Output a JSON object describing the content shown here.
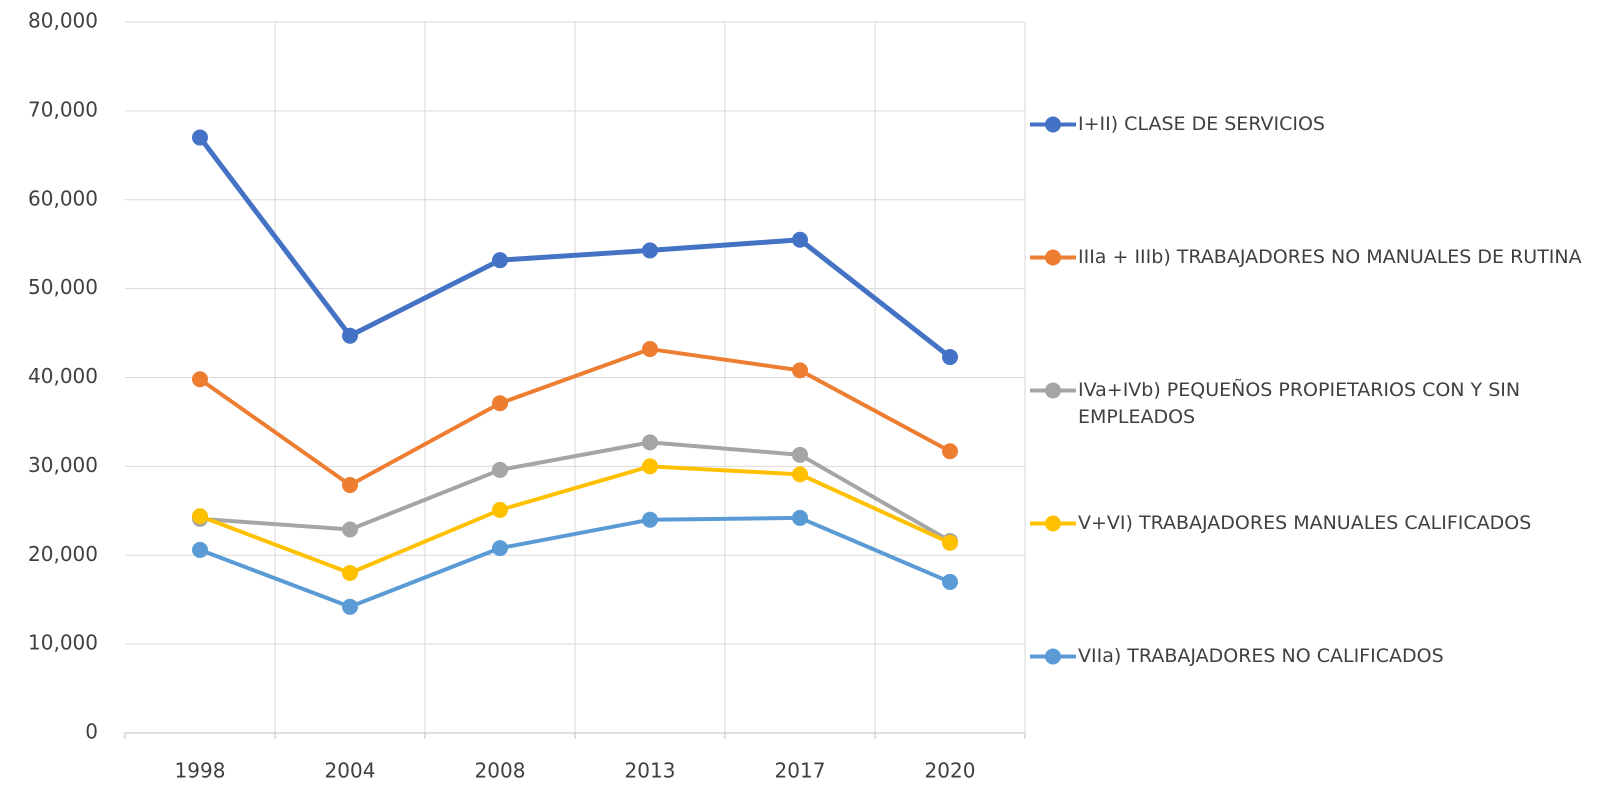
{
  "chart_data": {
    "type": "line",
    "categories": [
      "1998",
      "2004",
      "2008",
      "2013",
      "2017",
      "2020"
    ],
    "series": [
      {
        "name": "I+II) CLASE DE SERVICIOS",
        "color": "#4472c4",
        "values": [
          67000,
          44700,
          53200,
          54300,
          55500,
          42300
        ]
      },
      {
        "name": "IIIa + IIIb) TRABAJADORES NO MANUALES DE RUTINA",
        "color": "#ed7d31",
        "values": [
          39800,
          27900,
          37100,
          43200,
          40800,
          31700
        ]
      },
      {
        "name": "IVa+IVb) PEQUEÑOS PROPIETARIOS CON Y SIN EMPLEADOS",
        "color": "#a5a5a5",
        "values": [
          24100,
          22900,
          29600,
          32700,
          31300,
          21600
        ]
      },
      {
        "name": "V+VI) TRABAJADORES MANUALES CALIFICADOS",
        "color": "#ffc000",
        "values": [
          24400,
          18000,
          25100,
          30000,
          29100,
          21400
        ]
      },
      {
        "name": "VIIa) TRABAJADORES NO CALIFICADOS",
        "color": "#5b9bd5",
        "values": [
          20600,
          14200,
          20800,
          24000,
          24200,
          17000
        ]
      }
    ],
    "ylim": [
      0,
      80000
    ],
    "yticks": [
      0,
      {
        "value": 10000,
        "label": "10,000"
      },
      {
        "value": 20000,
        "label": "20,000"
      },
      {
        "value": 30000,
        "label": "30,000"
      },
      {
        "value": 40000,
        "label": "40,000"
      },
      {
        "value": 50000,
        "label": "50,000"
      },
      {
        "value": 60000,
        "label": "60,000"
      },
      {
        "value": 70000,
        "label": "70,000"
      },
      {
        "value": 80000,
        "label": "80,000"
      }
    ],
    "grid": true,
    "legend": "right"
  }
}
